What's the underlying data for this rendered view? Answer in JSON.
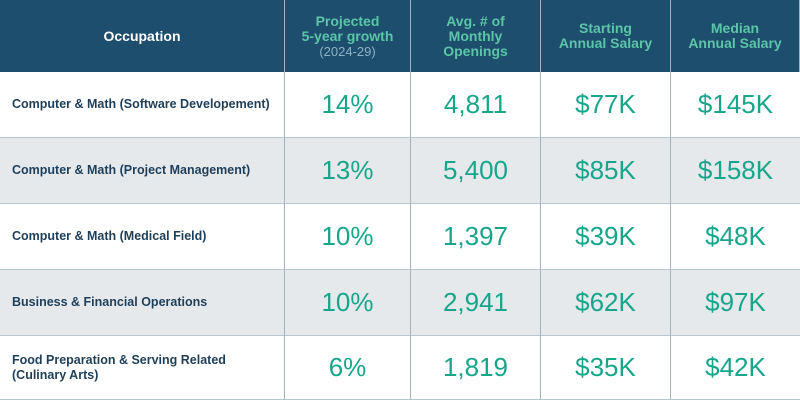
{
  "header": {
    "occupation": "Occupation",
    "growth_line1": "Projected",
    "growth_line2": "5-year growth",
    "growth_line3": "(2024-29)",
    "openings_line1": "Avg. # of",
    "openings_line2": "Monthly",
    "openings_line3": "Openings",
    "starting_line1": "Starting",
    "starting_line2": "Annual Salary",
    "median_line1": "Median",
    "median_line2": "Annual Salary"
  },
  "rows": [
    {
      "occupation": "Computer & Math (Software Developement)",
      "growth": "14%",
      "openings": "4,811",
      "starting": "$77K",
      "median": "$145K"
    },
    {
      "occupation": "Computer & Math (Project Management)",
      "growth": "13%",
      "openings": "5,400",
      "starting": "$85K",
      "median": "$158K"
    },
    {
      "occupation": "Computer & Math (Medical Field)",
      "growth": "10%",
      "openings": "1,397",
      "starting": "$39K",
      "median": "$48K"
    },
    {
      "occupation": "Business & Financial Operations",
      "growth": "10%",
      "openings": "2,941",
      "starting": "$62K",
      "median": "$97K"
    },
    {
      "occupation": "Food Preparation & Serving Related (Culinary Arts)",
      "growth": "6%",
      "openings": "1,819",
      "starting": "$35K",
      "median": "$42K"
    }
  ],
  "colors": {
    "header_bg": "#1e4e6d",
    "header_accent": "#5cc5a9",
    "value_text": "#17a68a",
    "occupation_text": "#1e3f5a",
    "alt_row_bg": "#e6e9ec"
  }
}
